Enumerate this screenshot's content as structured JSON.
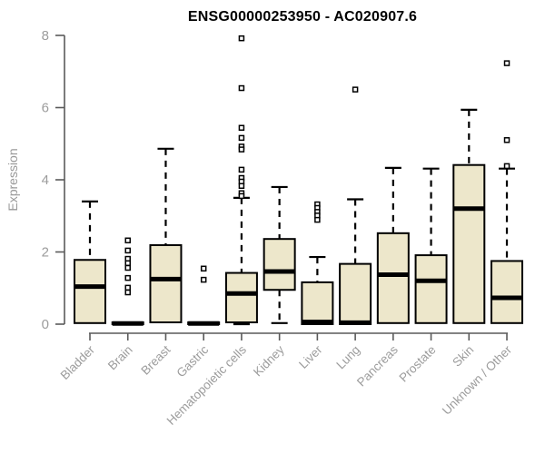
{
  "chart_data": {
    "type": "boxplot",
    "title": "ENSG00000253950 - AC020907.6",
    "ylabel": "Expression",
    "xlabel": "",
    "ylim": [
      0,
      8
    ],
    "yticks": [
      0,
      2,
      4,
      6,
      8
    ],
    "grid": false,
    "legend": "none",
    "x_label_rotation_deg": 45,
    "categories": [
      "Bladder",
      "Brain",
      "Breast",
      "Gastric",
      "Hematopoietic cells",
      "Kidney",
      "Liver",
      "Lung",
      "Pancreas",
      "Prostate",
      "Skin",
      "Unknown / Other"
    ],
    "series": [
      {
        "category": "Bladder",
        "whisker_low": 0,
        "q1": 0.03,
        "median": 1.04,
        "q3": 1.78,
        "whisker_high": 3.4,
        "outliers": []
      },
      {
        "category": "Brain",
        "whisker_low": 0,
        "q1": 0,
        "median": 0.02,
        "q3": 0.05,
        "whisker_high": 0.05,
        "outliers": [
          2.32,
          2.04,
          1.81,
          1.69,
          1.56,
          1.28,
          1.01,
          0.88
        ]
      },
      {
        "category": "Breast",
        "whisker_low": 0.03,
        "q1": 0.05,
        "median": 1.25,
        "q3": 2.19,
        "whisker_high": 4.86,
        "outliers": []
      },
      {
        "category": "Gastric",
        "whisker_low": 0,
        "q1": 0,
        "median": 0.02,
        "q3": 0.05,
        "whisker_high": 0.05,
        "outliers": [
          1.54,
          1.23
        ]
      },
      {
        "category": "Hematopoietic cells",
        "whisker_low": 0,
        "q1": 0.05,
        "median": 0.85,
        "q3": 1.42,
        "whisker_high": 3.5,
        "outliers": [
          7.92,
          6.54,
          5.44,
          5.16,
          4.92,
          4.84,
          4.28,
          4.05,
          3.95,
          3.83,
          3.63,
          3.55
        ]
      },
      {
        "category": "Kidney",
        "whisker_low": 0.03,
        "q1": 0.95,
        "median": 1.46,
        "q3": 2.36,
        "whisker_high": 3.8,
        "outliers": []
      },
      {
        "category": "Liver",
        "whisker_low": 0,
        "q1": 0,
        "median": 0.06,
        "q3": 1.16,
        "whisker_high": 1.86,
        "outliers": [
          3.32,
          3.22,
          3.11,
          3.01,
          2.89
        ]
      },
      {
        "category": "Lung",
        "whisker_low": 0,
        "q1": 0,
        "median": 0.04,
        "q3": 1.67,
        "whisker_high": 3.46,
        "outliers": [
          6.5
        ]
      },
      {
        "category": "Pancreas",
        "whisker_low": 0,
        "q1": 0.03,
        "median": 1.37,
        "q3": 2.52,
        "whisker_high": 4.33,
        "outliers": []
      },
      {
        "category": "Prostate",
        "whisker_low": 0,
        "q1": 0.03,
        "median": 1.2,
        "q3": 1.91,
        "whisker_high": 4.31,
        "outliers": []
      },
      {
        "category": "Skin",
        "whisker_low": 0,
        "q1": 0.03,
        "median": 3.2,
        "q3": 4.41,
        "whisker_high": 5.94,
        "outliers": []
      },
      {
        "category": "Unknown / Other",
        "whisker_low": 0,
        "q1": 0.03,
        "median": 0.73,
        "q3": 1.75,
        "whisker_high": 4.31,
        "outliers": [
          7.23,
          5.1,
          4.38
        ]
      }
    ],
    "colors": {
      "box_fill": "#EDE7CB",
      "box_border": "#000000",
      "median": "#000000",
      "whisker": "#000000",
      "outlier_fill": "#FFFFFF",
      "outlier_border": "#000000",
      "axis_line": "#5A5A5A",
      "axis_text": "#9C9C9C",
      "title_text": "#000000",
      "background": "#FFFFFF"
    }
  }
}
